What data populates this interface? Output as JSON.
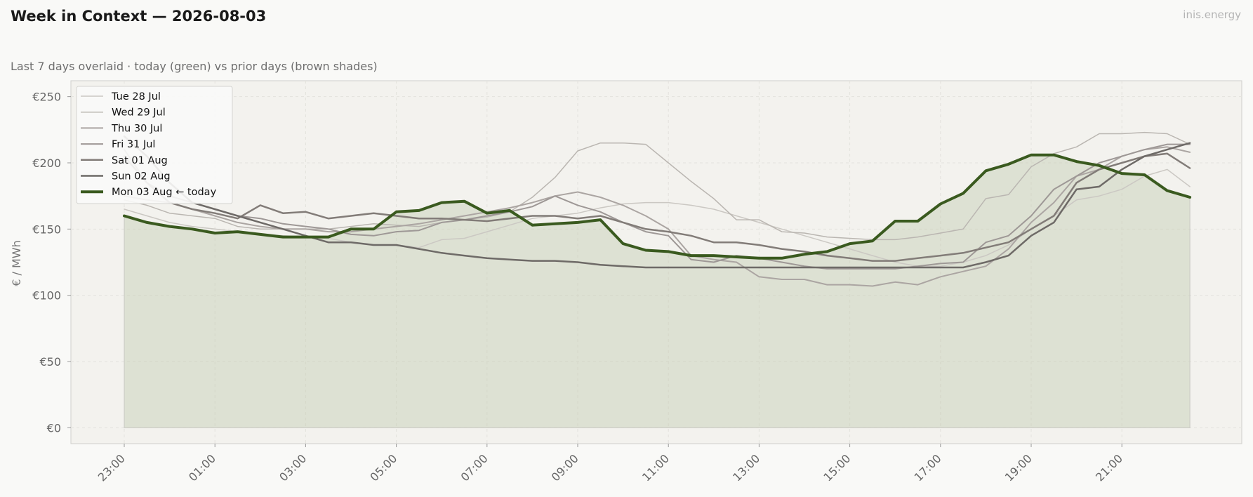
{
  "header": {
    "title": "Week in Context — 2026-08-03",
    "subtitle": "Last 7 days overlaid  ·  today (green) vs prior days (brown shades)",
    "brand": "inis.energy"
  },
  "chart_data": {
    "type": "line",
    "ylabel": "€ / MWh",
    "ylim": [
      -12,
      262
    ],
    "yticks": [
      0,
      50,
      100,
      150,
      200,
      250
    ],
    "ytick_labels": [
      "€0",
      "€50",
      "€100",
      "€150",
      "€200",
      "€250"
    ],
    "xtick_labels": [
      "23:00",
      "01:00",
      "03:00",
      "05:00",
      "07:00",
      "09:00",
      "11:00",
      "13:00",
      "15:00",
      "17:00",
      "19:00",
      "21:00"
    ],
    "xtick_step_points": 4,
    "x_points": 48,
    "grid": true,
    "legend_position": "top-left",
    "today_fill": true,
    "series": [
      {
        "name": "Tue 28 Jul",
        "color": "#cbc8c3",
        "width": 1.5,
        "values": [
          165,
          160,
          155,
          152,
          150,
          148,
          146,
          145,
          144,
          143,
          140,
          138,
          138,
          136,
          142,
          143,
          148,
          153,
          158,
          160,
          162,
          166,
          169,
          170,
          170,
          168,
          165,
          160,
          155,
          150,
          145,
          140,
          135,
          130,
          125,
          122,
          122,
          125,
          130,
          138,
          150,
          160,
          172,
          175,
          180,
          190,
          195,
          182
        ]
      },
      {
        "name": "Wed 29 Jul",
        "color": "#bab6b1",
        "width": 1.5,
        "values": [
          172,
          168,
          162,
          160,
          158,
          152,
          150,
          150,
          150,
          150,
          152,
          154,
          153,
          152,
          155,
          157,
          159,
          163,
          174,
          189,
          209,
          215,
          215,
          214,
          200,
          186,
          173,
          157,
          157,
          148,
          147,
          144,
          143,
          142,
          142,
          144,
          147,
          150,
          173,
          176,
          197,
          207,
          212,
          222,
          222,
          223,
          222,
          214
        ]
      },
      {
        "name": "Thu 30 Jul",
        "color": "#aba5a2",
        "width": 2,
        "values": [
          175,
          172,
          170,
          165,
          160,
          155,
          152,
          150,
          150,
          148,
          148,
          150,
          152,
          154,
          157,
          160,
          163,
          166,
          170,
          175,
          178,
          174,
          168,
          160,
          150,
          130,
          127,
          125,
          114,
          112,
          112,
          108,
          108,
          107,
          110,
          108,
          114,
          118,
          122,
          135,
          155,
          170,
          190,
          195,
          205,
          210,
          212,
          208
        ]
      },
      {
        "name": "Fri 31 Jul",
        "color": "#9e9896",
        "width": 2,
        "values": [
          210,
          185,
          175,
          170,
          165,
          160,
          158,
          154,
          152,
          150,
          146,
          145,
          148,
          149,
          155,
          157,
          160,
          163,
          167,
          175,
          168,
          163,
          155,
          148,
          145,
          127,
          125,
          130,
          128,
          125,
          122,
          120,
          120,
          120,
          120,
          122,
          124,
          125,
          140,
          145,
          160,
          180,
          190,
          200,
          205,
          210,
          214,
          214
        ]
      },
      {
        "name": "Sat 01 Aug",
        "color": "#827c78",
        "width": 2.5,
        "values": [
          205,
          185,
          170,
          165,
          162,
          158,
          168,
          162,
          163,
          158,
          160,
          162,
          160,
          158,
          158,
          157,
          156,
          158,
          160,
          160,
          158,
          160,
          155,
          150,
          148,
          145,
          140,
          140,
          138,
          135,
          133,
          130,
          128,
          126,
          126,
          128,
          130,
          132,
          136,
          140,
          150,
          160,
          185,
          195,
          200,
          205,
          207,
          196
        ]
      },
      {
        "name": "Sun 02 Aug",
        "color": "#6e6a67",
        "width": 2.5,
        "values": [
          220,
          205,
          185,
          170,
          165,
          160,
          155,
          150,
          145,
          140,
          140,
          138,
          138,
          135,
          132,
          130,
          128,
          127,
          126,
          126,
          125,
          123,
          122,
          121,
          121,
          121,
          121,
          121,
          121,
          121,
          121,
          121,
          121,
          121,
          121,
          121,
          121,
          121,
          125,
          130,
          145,
          155,
          180,
          182,
          195,
          205,
          210,
          215
        ]
      },
      {
        "name": "Mon 03 Aug",
        "suffix": "← today",
        "color": "#3a5a1f",
        "width": 4,
        "values": [
          160,
          155,
          152,
          150,
          147,
          148,
          146,
          144,
          144,
          144,
          150,
          150,
          163,
          164,
          170,
          171,
          162,
          164,
          153,
          154,
          155,
          157,
          139,
          134,
          133,
          130,
          130,
          129,
          128,
          128,
          131,
          133,
          139,
          141,
          156,
          156,
          169,
          177,
          194,
          199,
          206,
          206,
          201,
          198,
          192,
          191,
          179,
          174
        ]
      }
    ]
  }
}
